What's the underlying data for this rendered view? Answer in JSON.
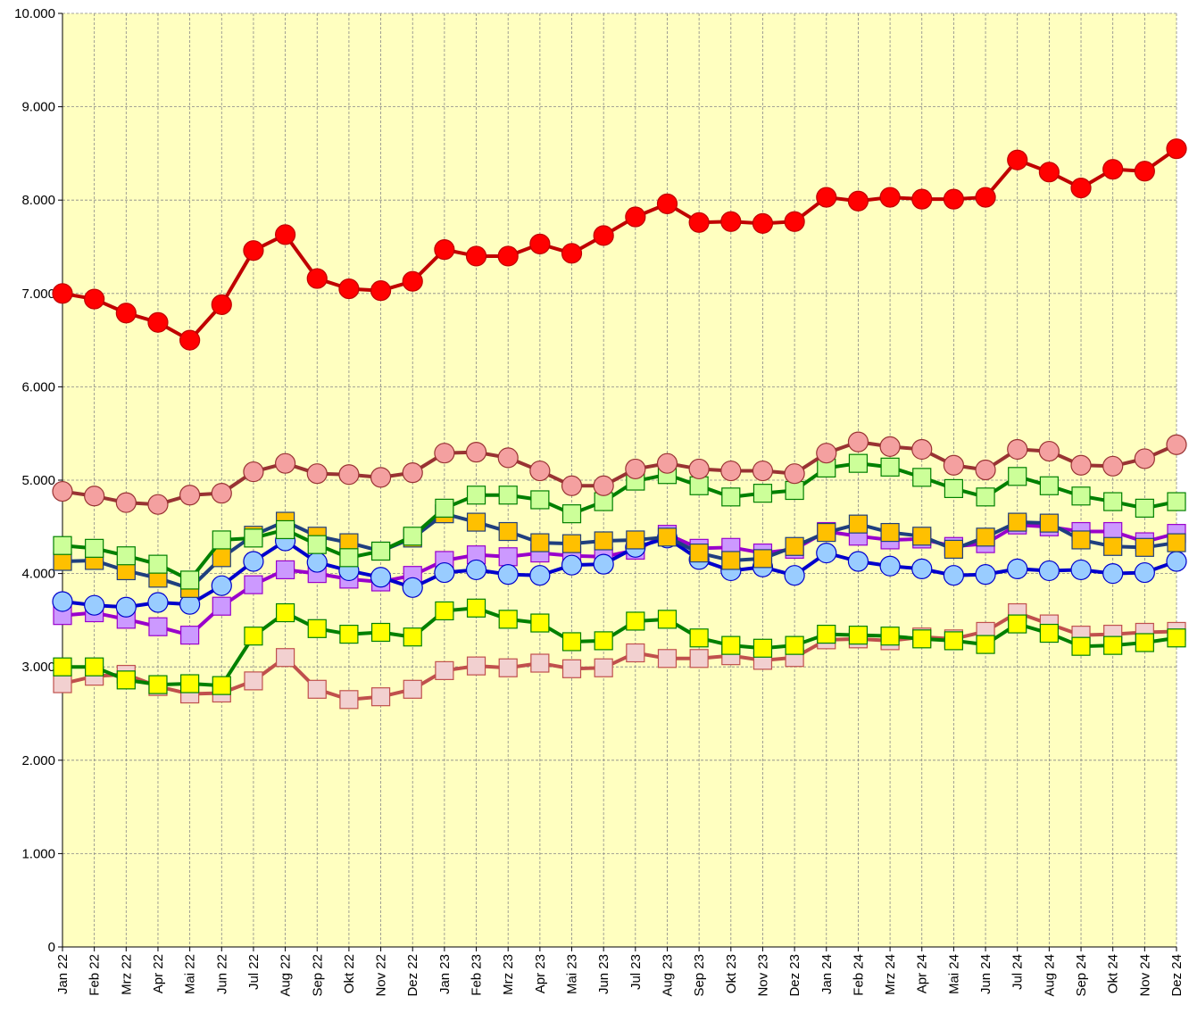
{
  "chart_data": {
    "type": "line",
    "categories": [
      "Jan 22",
      "Feb 22",
      "Mrz 22",
      "Apr 22",
      "Mai 22",
      "Jun 22",
      "Jul 22",
      "Aug 22",
      "Sep 22",
      "Okt 22",
      "Nov 22",
      "Dez 22",
      "Jan 23",
      "Feb 23",
      "Mrz 23",
      "Apr 23",
      "Mai 23",
      "Jun 23",
      "Jul 23",
      "Aug 23",
      "Sep 23",
      "Okt 23",
      "Nov 23",
      "Dez 23",
      "Jan 24",
      "Feb 24",
      "Mrz 24",
      "Apr 24",
      "Mai 24",
      "Jun 24",
      "Jul 24",
      "Aug 24",
      "Sep 24",
      "Okt 24",
      "Nov 24",
      "Dez 24"
    ],
    "ylim": [
      0,
      10000
    ],
    "yticks": [
      0,
      {
        "value": 1000,
        "label": "1.000"
      },
      {
        "value": 2000,
        "label": "2.000"
      },
      {
        "value": 3000,
        "label": "3.000"
      },
      {
        "value": 4000,
        "label": "4.000"
      },
      {
        "value": 5000,
        "label": "5.000"
      },
      {
        "value": 6000,
        "label": "6.000"
      },
      {
        "value": 7000,
        "label": "7.000"
      },
      {
        "value": 8000,
        "label": "8.000"
      },
      {
        "value": 9000,
        "label": "9.000"
      },
      {
        "value": 10000,
        "label": "10.000"
      }
    ],
    "grid": true,
    "background": "#ffffc0",
    "series": [
      {
        "marker": "square",
        "color": "#f2d0d0",
        "line_color": "#c0504d",
        "values": [
          2820,
          2900,
          2920,
          2790,
          2710,
          2720,
          2850,
          3100,
          2760,
          2650,
          2680,
          2760,
          2960,
          3010,
          2990,
          3040,
          2980,
          2990,
          3150,
          3090,
          3090,
          3120,
          3070,
          3100,
          3290,
          3300,
          3280,
          3320,
          3300,
          3380,
          3580,
          3460,
          3340,
          3350,
          3370,
          3380
        ]
      },
      {
        "marker": "square",
        "color": "#ffff00",
        "line_color": "#008000",
        "values": [
          3000,
          3000,
          2860,
          2810,
          2820,
          2800,
          3330,
          3580,
          3410,
          3350,
          3370,
          3320,
          3600,
          3630,
          3510,
          3470,
          3270,
          3280,
          3490,
          3510,
          3310,
          3230,
          3200,
          3230,
          3350,
          3340,
          3330,
          3300,
          3280,
          3240,
          3460,
          3360,
          3220,
          3230,
          3260,
          3310
        ]
      },
      {
        "marker": "square",
        "color": "#cc99ff",
        "line_color": "#9900cc",
        "values": [
          3550,
          3580,
          3510,
          3430,
          3340,
          3650,
          3880,
          4040,
          4000,
          3940,
          3910,
          3980,
          4140,
          4200,
          4180,
          4220,
          4190,
          4180,
          4250,
          4420,
          4270,
          4280,
          4220,
          4260,
          4450,
          4400,
          4360,
          4370,
          4290,
          4320,
          4520,
          4500,
          4450,
          4450,
          4340,
          4430
        ]
      },
      {
        "marker": "circle",
        "color": "#99ccff",
        "line_color": "#0000cc",
        "values": [
          3700,
          3660,
          3640,
          3690,
          3670,
          3870,
          4130,
          4350,
          4120,
          4030,
          3960,
          3850,
          4010,
          4040,
          3990,
          3980,
          4090,
          4100,
          4280,
          4380,
          4150,
          4030,
          4070,
          3980,
          4220,
          4130,
          4080,
          4050,
          3980,
          3990,
          4050,
          4030,
          4040,
          4000,
          4010,
          4130
        ]
      },
      {
        "marker": "square",
        "color": "#ffc000",
        "line_color": "#1f3f7f",
        "values": [
          4130,
          4140,
          4030,
          3950,
          3840,
          4170,
          4410,
          4560,
          4400,
          4330,
          4240,
          4380,
          4640,
          4550,
          4450,
          4330,
          4320,
          4350,
          4360,
          4390,
          4220,
          4140,
          4160,
          4290,
          4440,
          4530,
          4440,
          4400,
          4260,
          4390,
          4550,
          4540,
          4360,
          4290,
          4280,
          4330
        ]
      },
      {
        "marker": "square",
        "color": "#ccff99",
        "line_color": "#008000",
        "values": [
          4300,
          4270,
          4190,
          4100,
          3930,
          4360,
          4380,
          4470,
          4310,
          4170,
          4240,
          4400,
          4700,
          4840,
          4840,
          4790,
          4640,
          4770,
          4990,
          5060,
          4940,
          4820,
          4860,
          4890,
          5130,
          5180,
          5140,
          5030,
          4910,
          4820,
          5040,
          4940,
          4830,
          4770,
          4700,
          4770
        ]
      },
      {
        "marker": "circle",
        "color": "#f4a0a0",
        "line_color": "#993333",
        "values": [
          4880,
          4830,
          4760,
          4740,
          4840,
          4860,
          5090,
          5180,
          5070,
          5060,
          5030,
          5080,
          5290,
          5300,
          5240,
          5100,
          4940,
          4940,
          5120,
          5180,
          5120,
          5100,
          5100,
          5070,
          5290,
          5410,
          5360,
          5330,
          5160,
          5110,
          5330,
          5310,
          5160,
          5150,
          5230,
          5380
        ]
      },
      {
        "marker": "circle",
        "color": "#ff0000",
        "line_color": "#c00000",
        "values": [
          7000,
          6940,
          6790,
          6690,
          6500,
          6880,
          7460,
          7630,
          7160,
          7050,
          7030,
          7130,
          7470,
          7400,
          7400,
          7530,
          7430,
          7620,
          7820,
          7960,
          7760,
          7770,
          7750,
          7770,
          8030,
          7990,
          8030,
          8010,
          8010,
          8030,
          8430,
          8300,
          8130,
          8330,
          8310,
          8550
        ]
      }
    ]
  }
}
